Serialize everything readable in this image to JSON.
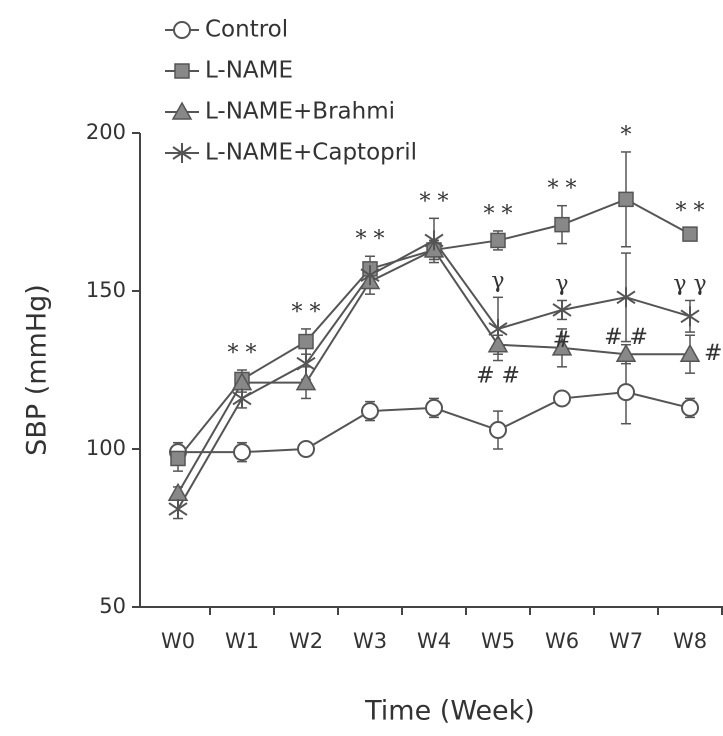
{
  "chart_data": {
    "type": "line",
    "x_label": "Time (Week)",
    "y_label": "SBP (mmHg)",
    "categories": [
      "W0",
      "W1",
      "W2",
      "W3",
      "W4",
      "W5",
      "W6",
      "W7",
      "W8"
    ],
    "ylim": [
      50,
      200
    ],
    "yticks": [
      50,
      100,
      150,
      200
    ],
    "legend": "top-left",
    "series": [
      {
        "name": "Control",
        "color": "#555555",
        "marker": "circle",
        "values": [
          99,
          99,
          100,
          112,
          113,
          106,
          116,
          118,
          113
        ],
        "errors": [
          3,
          3,
          1,
          3,
          3,
          6,
          2,
          10,
          3
        ]
      },
      {
        "name": "L-NAME",
        "color": "#555555",
        "marker": "square",
        "values": [
          97,
          122,
          134,
          157,
          163,
          166,
          171,
          179,
          168
        ],
        "errors": [
          4,
          3,
          4,
          4,
          3,
          3,
          6,
          15,
          2
        ]
      },
      {
        "name": "L-NAME+Brahmi",
        "color": "#555555",
        "marker": "triangle",
        "values": [
          86,
          121,
          121,
          153,
          163,
          133,
          132,
          130,
          130
        ],
        "errors": [
          2,
          3,
          5,
          4,
          3,
          3,
          6,
          3,
          6
        ]
      },
      {
        "name": "L-NAME+Captopril",
        "color": "#555555",
        "marker": "asterisk",
        "values": [
          81,
          116,
          127,
          155,
          166,
          138,
          144,
          148,
          142
        ],
        "errors": [
          3,
          3,
          5,
          3,
          7,
          10,
          3,
          14,
          5
        ]
      }
    ],
    "stars": [
      null,
      "* *",
      "* *",
      "* *",
      "* *",
      "* *",
      "* *",
      "*",
      "* *"
    ],
    "gammas": [
      null,
      null,
      null,
      null,
      null,
      "γ",
      "γ",
      null,
      "γ γ"
    ],
    "hashes": [
      null,
      null,
      null,
      null,
      null,
      "# #",
      "#",
      "# #",
      "#"
    ]
  }
}
